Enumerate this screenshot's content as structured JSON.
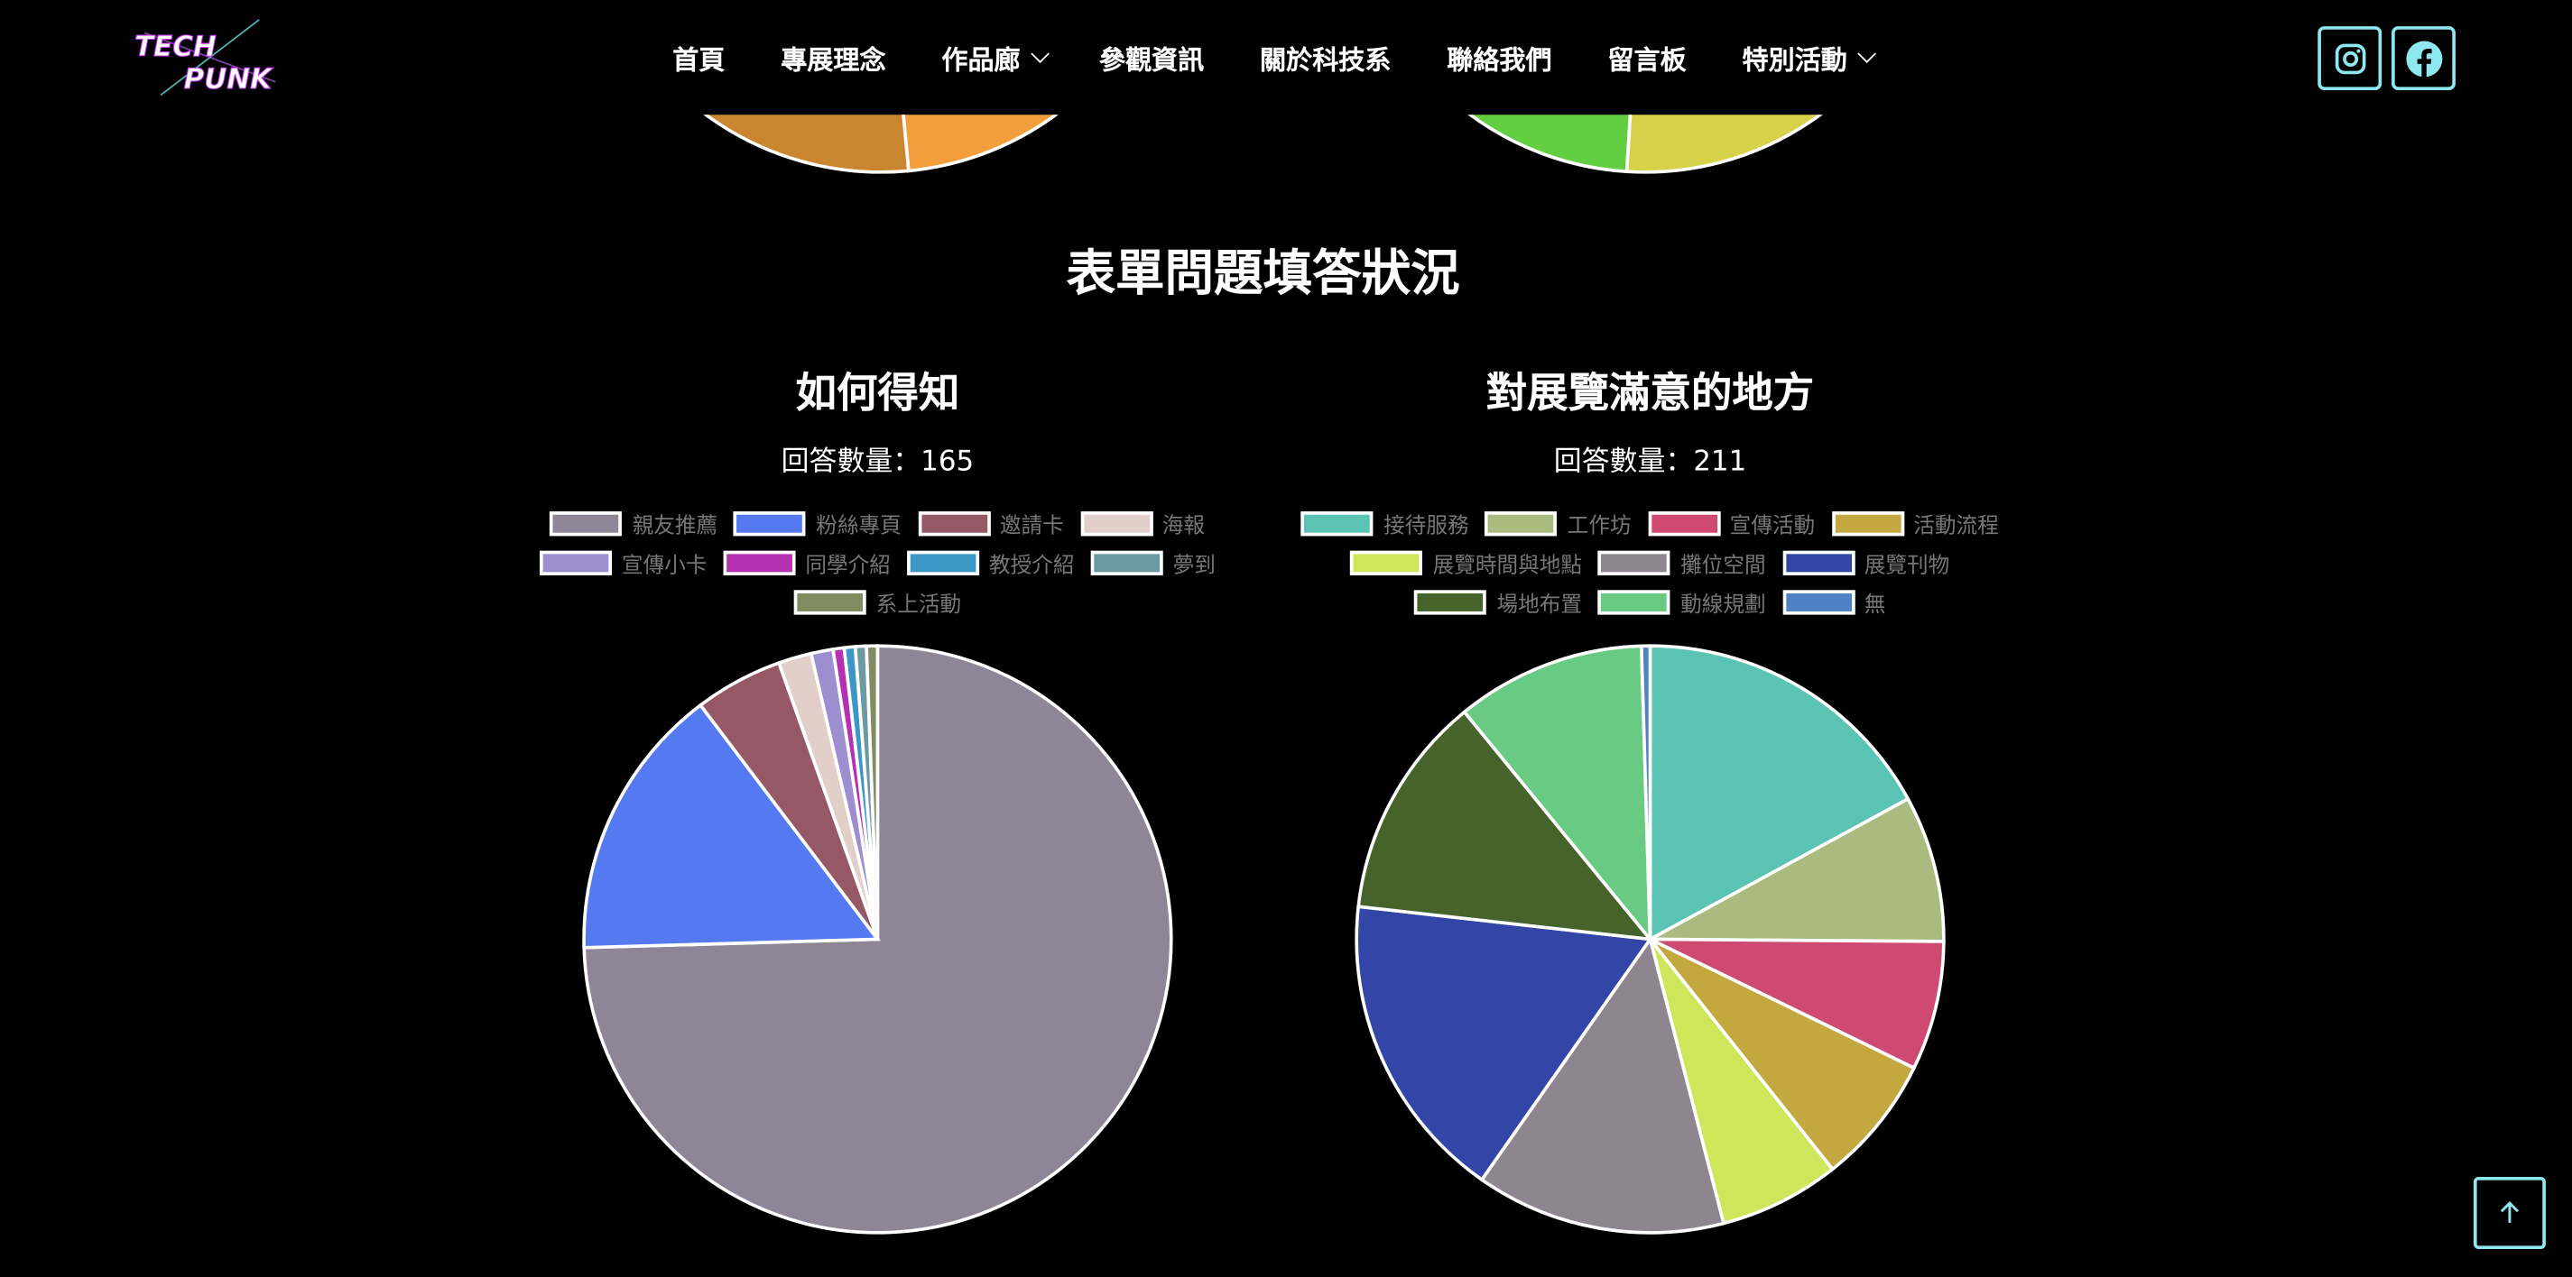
{
  "header": {
    "logo_text": "TECH PUNK",
    "nav": [
      {
        "label": "首頁",
        "dropdown": false
      },
      {
        "label": "專展理念",
        "dropdown": false
      },
      {
        "label": "作品廊",
        "dropdown": true
      },
      {
        "label": "參觀資訊",
        "dropdown": false
      },
      {
        "label": "關於科技系",
        "dropdown": false
      },
      {
        "label": "聯絡我們",
        "dropdown": false
      },
      {
        "label": "留言板",
        "dropdown": false
      },
      {
        "label": "特別活動",
        "dropdown": true
      }
    ],
    "social": [
      "instagram-icon",
      "facebook-icon"
    ],
    "accent_color": "#8ee8f0"
  },
  "partial_charts_above": [
    {
      "colors": [
        "#c98530",
        "#f29e3a"
      ]
    },
    {
      "colors": [
        "#62cf42",
        "#d7d149"
      ]
    }
  ],
  "section_title": "表單問題填答狀況",
  "chart_data": [
    {
      "type": "pie",
      "title": "如何得知",
      "count_label": "回答數量：165",
      "labels": [
        "親友推薦",
        "粉絲專頁",
        "邀請卡",
        "海報",
        "宣傳小卡",
        "同學介紹",
        "教授介紹",
        "夢到",
        "系上活動"
      ],
      "values": [
        123,
        25,
        8,
        3,
        2,
        1,
        1,
        1,
        1
      ],
      "colors": [
        "#8e8597",
        "#5479f0",
        "#955864",
        "#e3cfca",
        "#9d8ecf",
        "#b531b1",
        "#3c97c6",
        "#6b9aa0",
        "#818c63"
      ],
      "legend_position": "top"
    },
    {
      "type": "pie",
      "title": "對展覽滿意的地方",
      "count_label": "回答數量：211",
      "labels": [
        "接待服務",
        "工作坊",
        "宣傳活動",
        "活動流程",
        "展覽時間與地點",
        "攤位空間",
        "展覽刊物",
        "場地布置",
        "動線規劃",
        "無"
      ],
      "values": [
        36,
        17,
        15,
        15,
        14,
        29,
        36,
        26,
        22,
        1
      ],
      "colors": [
        "#5ac3b3",
        "#a9bb7e",
        "#cf4a73",
        "#c3a83f",
        "#cfe65a",
        "#8d8690",
        "#3346a8",
        "#46632c",
        "#69ca84",
        "#4e82c4"
      ],
      "legend_position": "top"
    }
  ]
}
